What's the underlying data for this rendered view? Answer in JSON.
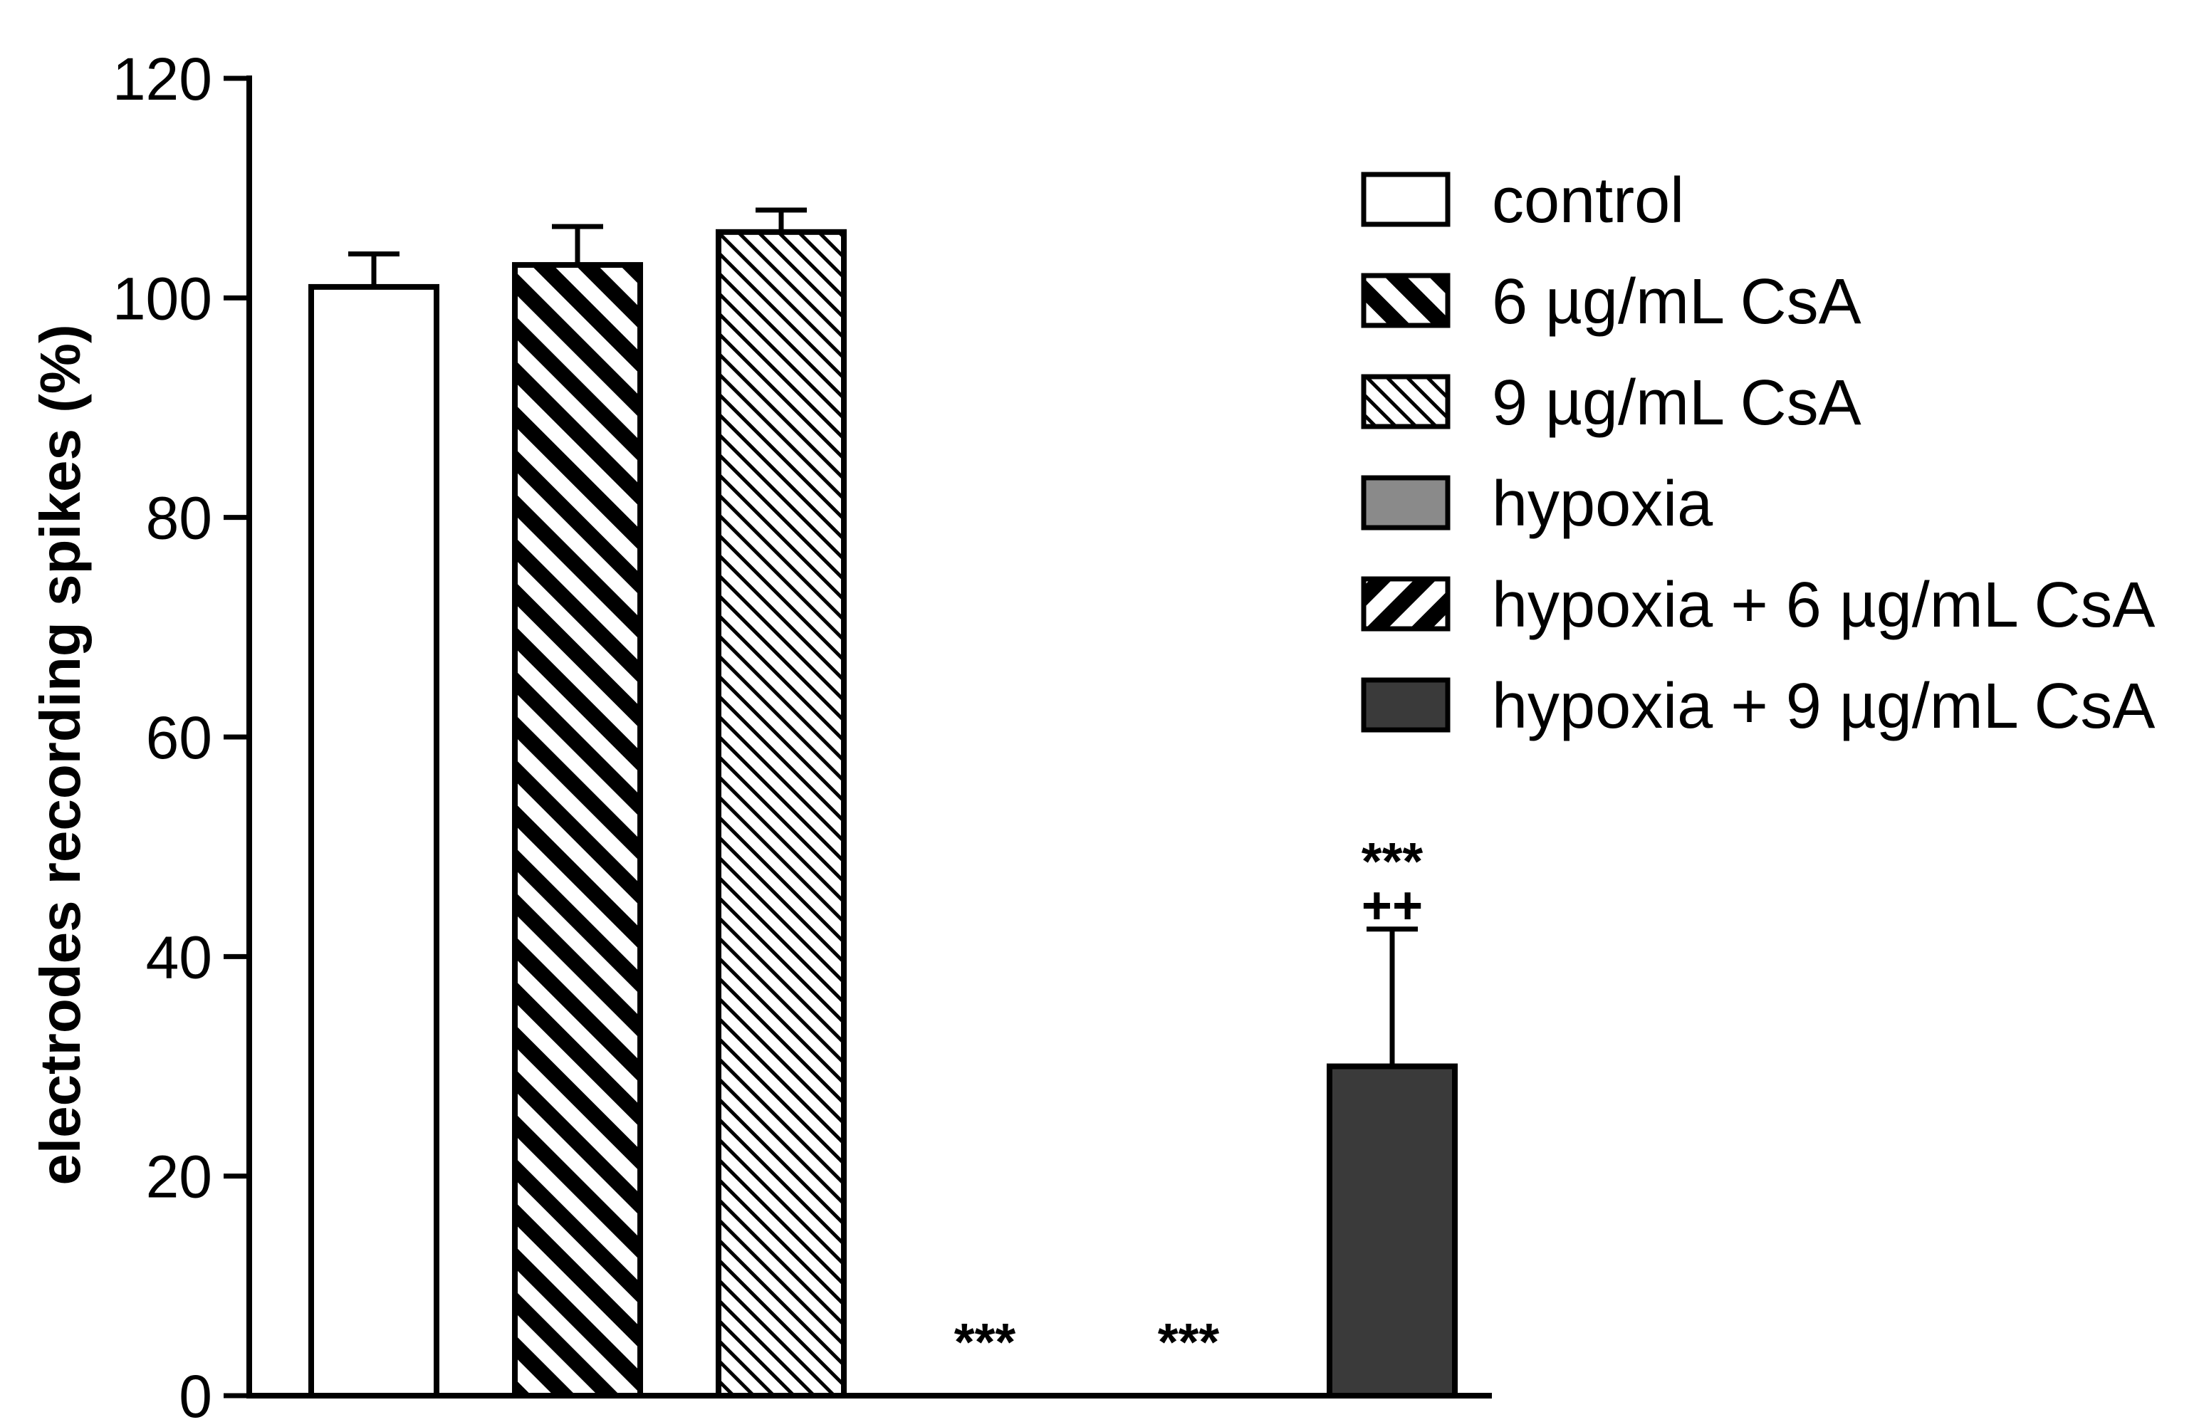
{
  "chart_data": {
    "type": "bar",
    "title": "",
    "xlabel": "",
    "ylabel": "electrodes recording spikes (%)",
    "ylim": [
      0,
      120
    ],
    "yticks": [
      0,
      20,
      40,
      60,
      80,
      100,
      120
    ],
    "grid": false,
    "legend_position": "right",
    "series": [
      {
        "name": "control",
        "value": 101,
        "error": 3,
        "fill": "white",
        "annotation": ""
      },
      {
        "name": "6 µg/mL CsA",
        "value": 103,
        "error": 3.5,
        "fill": "hatch-wide-backslash",
        "annotation": ""
      },
      {
        "name": "9 µg/mL CsA",
        "value": 106,
        "error": 2,
        "fill": "hatch-fine-backslash",
        "annotation": ""
      },
      {
        "name": "hypoxia",
        "value": 0,
        "error": 0,
        "fill": "gray",
        "annotation": "***"
      },
      {
        "name": "hypoxia + 6 µg/mL CsA",
        "value": 0,
        "error": 0,
        "fill": "hatch-wide-slash",
        "annotation": "***"
      },
      {
        "name": "hypoxia + 9 µg/mL CsA",
        "value": 30,
        "error": 12.5,
        "fill": "dark-gray",
        "annotation": "***",
        "annotation2": "++"
      }
    ]
  },
  "colors": {
    "axis": "#000000",
    "white_fill": "#ffffff",
    "gray_fill": "#8a8a8a",
    "dark_fill": "#3a3a3a"
  }
}
